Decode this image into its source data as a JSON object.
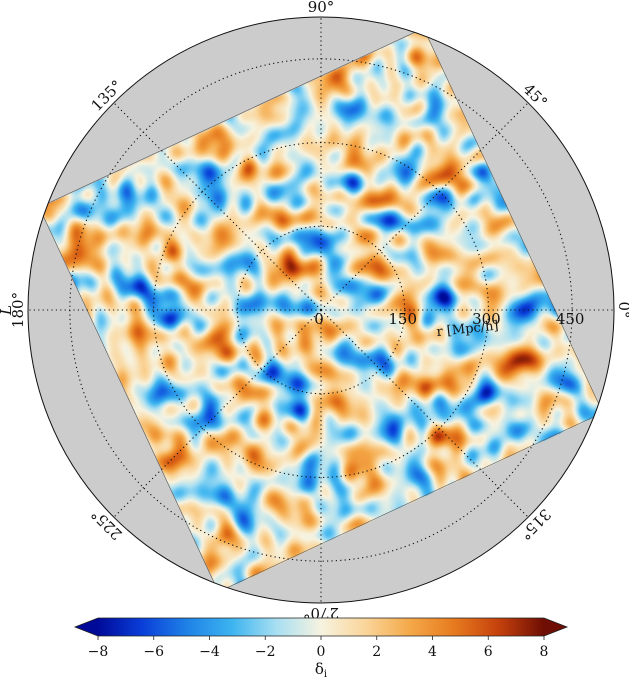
{
  "chart_data": {
    "type": "heatmap",
    "projection": "polar",
    "title": "",
    "angular_axis": {
      "label": "L",
      "unit": "°",
      "ticks": [
        {
          "value": 0,
          "label": "0°"
        },
        {
          "value": 45,
          "label": "45°"
        },
        {
          "value": 90,
          "label": "90°"
        },
        {
          "value": 135,
          "label": "135°"
        },
        {
          "value": 180,
          "label": "180°"
        },
        {
          "value": 225,
          "label": "225°"
        },
        {
          "value": 270,
          "label": "270°"
        },
        {
          "value": 315,
          "label": "315°"
        }
      ]
    },
    "radial_axis": {
      "label": "r [Mpc/h]",
      "range": [
        0,
        525
      ],
      "ticks": [
        {
          "value": 0,
          "label": "0"
        },
        {
          "value": 150,
          "label": "150"
        },
        {
          "value": 300,
          "label": "300"
        },
        {
          "value": 450,
          "label": "450"
        }
      ]
    },
    "field": {
      "name": "",
      "description": "",
      "box_rotation_deg": 25,
      "box_half_size_mpc": 380,
      "seed": 12
    },
    "colorbar": {
      "label": "δ_i",
      "range": [
        -8,
        8
      ],
      "ticks": [
        {
          "value": -8,
          "label": "−8"
        },
        {
          "value": -6,
          "label": "−6"
        },
        {
          "value": -4,
          "label": "−4"
        },
        {
          "value": -2,
          "label": "−2"
        },
        {
          "value": 0,
          "label": "0"
        },
        {
          "value": 2,
          "label": "2"
        },
        {
          "value": 4,
          "label": "4"
        },
        {
          "value": 6,
          "label": "6"
        },
        {
          "value": 8,
          "label": "8"
        }
      ],
      "extend": "both",
      "colormap": [
        "#000a99",
        "#0a3fd9",
        "#1f82e6",
        "#3cb4f0",
        "#a8dff2",
        "#f7f3e0",
        "#fad59a",
        "#f4a848",
        "#e67a1e",
        "#c4400c",
        "#6e0e04"
      ]
    },
    "grid": true,
    "colors": {
      "outside": "#cccccc",
      "grid": "#111111"
    }
  }
}
